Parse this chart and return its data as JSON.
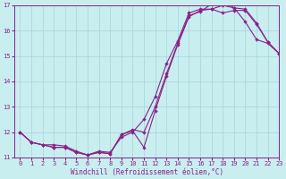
{
  "xlabel": "Windchill (Refroidissement éolien,°C)",
  "bg_color": "#c8eef0",
  "grid_color": "#a8d4d8",
  "line_color": "#882288",
  "xlim": [
    -0.5,
    23
  ],
  "ylim": [
    11,
    17
  ],
  "xticks": [
    0,
    1,
    2,
    3,
    4,
    5,
    6,
    7,
    8,
    9,
    10,
    11,
    12,
    13,
    14,
    15,
    16,
    17,
    18,
    19,
    20,
    21,
    22,
    23
  ],
  "yticks": [
    11,
    12,
    13,
    14,
    15,
    16,
    17
  ],
  "curve1_x": [
    0,
    1,
    2,
    3,
    4,
    5,
    6,
    7,
    8,
    9,
    10,
    11,
    12,
    13,
    14,
    15,
    16,
    17,
    18,
    19,
    20,
    21,
    22,
    23
  ],
  "curve1_y": [
    12.0,
    11.6,
    11.5,
    11.4,
    11.4,
    11.2,
    11.1,
    11.2,
    11.15,
    11.9,
    12.1,
    12.0,
    13.0,
    14.3,
    15.5,
    16.6,
    16.75,
    17.05,
    17.2,
    16.9,
    16.85,
    16.3,
    15.55,
    15.1
  ],
  "curve2_x": [
    0,
    1,
    2,
    3,
    4,
    5,
    6,
    7,
    8,
    9,
    10,
    11,
    12,
    13,
    14,
    15,
    16,
    17,
    18,
    19,
    20,
    21,
    22,
    23
  ],
  "curve2_y": [
    12.0,
    11.6,
    11.5,
    11.4,
    11.4,
    11.2,
    11.1,
    11.2,
    11.15,
    11.9,
    12.05,
    11.4,
    12.85,
    14.2,
    15.45,
    16.55,
    16.8,
    16.85,
    17.0,
    16.9,
    16.35,
    15.65,
    15.5,
    15.1
  ],
  "curve3_x": [
    0,
    1,
    2,
    3,
    4,
    5,
    6,
    7,
    8,
    9,
    10,
    11,
    12,
    13,
    14,
    15,
    16,
    17,
    18,
    19,
    20,
    21,
    22,
    23
  ],
  "curve3_y": [
    12.0,
    11.6,
    11.5,
    11.5,
    11.45,
    11.25,
    11.1,
    11.25,
    11.2,
    11.8,
    12.0,
    12.5,
    13.4,
    14.7,
    15.6,
    16.7,
    16.85,
    16.85,
    16.7,
    16.8,
    16.8,
    16.25,
    15.55,
    15.1
  ]
}
